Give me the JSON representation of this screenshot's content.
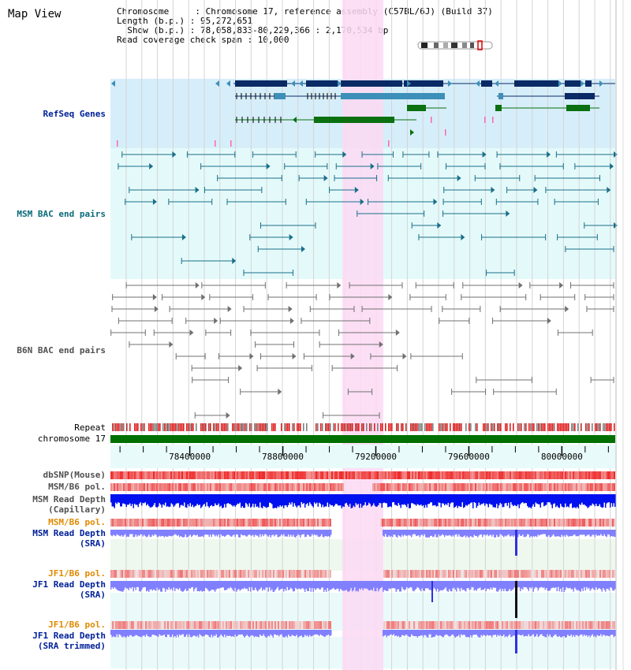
{
  "title": "Map View",
  "info": {
    "chromosome_label": "Chromosome     : Chromosome 17, reference assembly (C57BL/6J) (Build 37)",
    "length_label": "Length (b.p.) : 95,272,651",
    "show_label": "  Show (b.p.) : 78,058,833-80,229,366 : 2,170,534 bp",
    "span_label": "Read coverage check span : 10,000"
  },
  "tracks": {
    "refseq": "RefSeq Genes",
    "msm_bac": "MSM BAC end pairs",
    "b6n_bac": "B6N BAC end pairs",
    "repeat": "Repeat",
    "chromosome": "chromosome 17",
    "dbsnp": "dbSNP(Mouse)",
    "msm_b6_pol_1": "MSM/B6 pol.",
    "msm_read_depth_cap_1": "MSM Read Depth",
    "msm_read_depth_cap_2": "(Capillary)",
    "msm_b6_pol_2": "MSM/B6 pol.",
    "msm_read_depth_sra_1": "MSM Read Depth",
    "msm_read_depth_sra_2": "(SRA)",
    "jf1_b6_pol_1": "JF1/B6 pol.",
    "jf1_read_depth_sra_1": "JF1 Read Depth",
    "jf1_read_depth_sra_2": "(SRA)",
    "jf1_b6_pol_2": "JF1/B6 pol.",
    "jf1_read_depth_trim_1": "JF1 Read Depth",
    "jf1_read_depth_trim_2": "(SRA trimmed)"
  },
  "ruler": {
    "ticks": [
      {
        "label": "78400000",
        "pos": 78400000
      },
      {
        "label": "78800000",
        "pos": 78800000
      },
      {
        "label": "79200000",
        "pos": 79200000
      },
      {
        "label": "79600000",
        "pos": 79600000
      },
      {
        "label": "80000000",
        "pos": 80000000
      }
    ]
  },
  "colors": {
    "refseq_bg": "#d6eef9",
    "msm_bg": "#e4fafa",
    "b6n_bg": "#ffffff",
    "highlight": "#fbd9f3",
    "gene_dark": "#0a2a66",
    "gene_mid": "#3c8fb8",
    "gene_green": "#0a7010",
    "msm_pair": "#1a6f8a",
    "b6n_pair": "#707070",
    "repeat_red": "#e02020",
    "repeat_gray": "#808080",
    "chrom_green": "#007000",
    "label_blue": "#00219a",
    "label_teal": "#086a7a",
    "label_gray": "#505050",
    "label_orange": "#e08a00",
    "depth_blue": "#0010ee",
    "depth_light": "#8080ff"
  }
}
